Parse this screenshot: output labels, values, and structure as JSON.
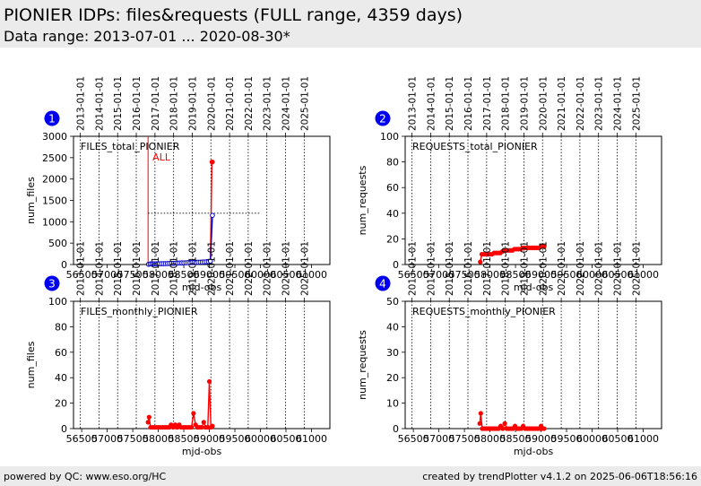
{
  "header": {
    "title": "PIONIER IDPs: files&requests (FULL range, 4359 days)",
    "subtitle": "Data range: 2013-07-01 ... 2020-08-30*"
  },
  "footer": {
    "left": "powered by QC: www.eso.org/HC",
    "right": "created by trendPlotter v4.1.2 on 2025-06-06T18:56:16"
  },
  "axes": {
    "xlabel": "mjd-obs",
    "x_ticks": [
      56500,
      57000,
      57500,
      58000,
      58500,
      59000,
      59500,
      60000,
      60500,
      61000
    ],
    "x_tick_labels": [
      "56500",
      "57000",
      "57500",
      "58000",
      "58500",
      "59000",
      "59500",
      "60000",
      "60500",
      "61000"
    ],
    "xlim": [
      56340,
      61360
    ],
    "date_ticks": [
      {
        "mjd": 56474,
        "label": "2013-01-01"
      },
      {
        "mjd": 56839,
        "label": "2014-01-01"
      },
      {
        "mjd": 57204,
        "label": "2015-01-01"
      },
      {
        "mjd": 57569,
        "label": "2016-01-01"
      },
      {
        "mjd": 57935,
        "label": "2017-01-01"
      },
      {
        "mjd": 58300,
        "label": "2018-01-01"
      },
      {
        "mjd": 58665,
        "label": "2019-01-01"
      },
      {
        "mjd": 59030,
        "label": "2020-01-01"
      },
      {
        "mjd": 59396,
        "label": "2021-01-01"
      },
      {
        "mjd": 59761,
        "label": "2022-01-01"
      },
      {
        "mjd": 60126,
        "label": "2023-01-01"
      },
      {
        "mjd": 60491,
        "label": "2024-01-01"
      },
      {
        "mjd": 60857,
        "label": "2025-01-01"
      }
    ]
  },
  "colors": {
    "badge": "#0000ee",
    "red": "#ff0000",
    "blue": "#0000cc",
    "axis": "#000000"
  },
  "chart_data": [
    {
      "id": 1,
      "badge": "1",
      "type": "line",
      "label": "FILES_total_PIONIER",
      "ylabel": "num_files",
      "ylim": [
        0,
        3000
      ],
      "yticks": [
        0,
        500,
        1000,
        1500,
        2000,
        2500,
        3000
      ],
      "marker_line": {
        "x": 57800,
        "label": "ALL"
      },
      "reference_line": {
        "x_start": 57800,
        "x_end": 60000,
        "y": 1200
      },
      "series": [
        {
          "color": "red",
          "marker": "dot",
          "x": [
            57810,
            57840,
            57870,
            57900,
            57930,
            57960,
            57990,
            58020,
            58060,
            58100,
            58140,
            58180,
            58220,
            58260,
            58300,
            58340,
            58380,
            58420,
            58460,
            58500,
            58540,
            58580,
            58620,
            58660,
            58700,
            58740,
            58780,
            58820,
            58860,
            58900,
            58940,
            58980,
            59020,
            59050,
            59060
          ],
          "y": [
            5,
            14,
            15,
            15,
            16,
            16,
            17,
            18,
            19,
            20,
            21,
            23,
            25,
            27,
            29,
            31,
            33,
            35,
            37,
            39,
            41,
            43,
            45,
            47,
            49,
            51,
            53,
            55,
            57,
            60,
            65,
            70,
            80,
            2400,
            2400
          ]
        },
        {
          "color": "blue",
          "marker": "ring",
          "x": [
            57810,
            57840,
            57870,
            57900,
            57930,
            57960,
            57990,
            58020,
            58060,
            58100,
            58140,
            58180,
            58220,
            58260,
            58300,
            58340,
            58380,
            58420,
            58460,
            58500,
            58540,
            58580,
            58620,
            58660,
            58700,
            58740,
            58780,
            58820,
            58860,
            58900,
            58940,
            58980,
            59020,
            59060
          ],
          "y": [
            5,
            14,
            15,
            15,
            16,
            16,
            17,
            18,
            19,
            20,
            21,
            23,
            25,
            27,
            29,
            31,
            33,
            35,
            37,
            39,
            41,
            43,
            45,
            47,
            49,
            51,
            53,
            55,
            57,
            60,
            65,
            70,
            80,
            1150
          ]
        }
      ]
    },
    {
      "id": 2,
      "badge": "2",
      "type": "line",
      "label": "REQUESTS_total_PIONIER",
      "ylabel": "num_requests",
      "ylim": [
        0,
        100
      ],
      "yticks": [
        0,
        20,
        40,
        60,
        80,
        100
      ],
      "series": [
        {
          "color": "red",
          "marker": "dot",
          "x": [
            57810,
            57840,
            57880,
            57920,
            57960,
            58000,
            58040,
            58080,
            58120,
            58160,
            58200,
            58240,
            58280,
            58320,
            58360,
            58400,
            58440,
            58480,
            58520,
            58560,
            58600,
            58640,
            58680,
            58720,
            58760,
            58800,
            58840,
            58880,
            58920,
            58960,
            59000,
            59040,
            59060
          ],
          "y": [
            2,
            8,
            8,
            8,
            8,
            8,
            8,
            9,
            9,
            9,
            9,
            10,
            11,
            11,
            11,
            11,
            11,
            12,
            12,
            12,
            12,
            13,
            13,
            13,
            13,
            13,
            13,
            13,
            13,
            13,
            14,
            14,
            14
          ]
        }
      ]
    },
    {
      "id": 3,
      "badge": "3",
      "type": "line",
      "label": "FILES_monthly_PIONIER",
      "ylabel": "num_files",
      "ylim": [
        0,
        100
      ],
      "yticks": [
        0,
        20,
        40,
        60,
        80,
        100
      ],
      "series": [
        {
          "color": "red",
          "marker": "dot",
          "x": [
            57800,
            57820,
            57850,
            57890,
            57930,
            57970,
            58010,
            58050,
            58090,
            58130,
            58170,
            58210,
            58250,
            58290,
            58330,
            58370,
            58410,
            58450,
            58490,
            58530,
            58570,
            58610,
            58650,
            58690,
            58730,
            58770,
            58810,
            58850,
            58890,
            58930,
            58970,
            59000,
            59030,
            59060
          ],
          "y": [
            5,
            9,
            1,
            1,
            1,
            1,
            1,
            1,
            1,
            1,
            1,
            1,
            3,
            1,
            3,
            1,
            3,
            1,
            1,
            1,
            1,
            1,
            1,
            12,
            3,
            1,
            1,
            1,
            5,
            1,
            1,
            37,
            1,
            2
          ]
        }
      ]
    },
    {
      "id": 4,
      "badge": "4",
      "type": "line",
      "label": "REQUESTS_monthly_PIONIER",
      "ylabel": "num_requests",
      "ylim": [
        0,
        50
      ],
      "yticks": [
        0,
        10,
        20,
        30,
        40,
        50
      ],
      "series": [
        {
          "color": "red",
          "marker": "dot",
          "x": [
            57800,
            57820,
            57850,
            57890,
            57930,
            57970,
            58010,
            58050,
            58090,
            58130,
            58170,
            58210,
            58250,
            58290,
            58330,
            58370,
            58410,
            58450,
            58490,
            58530,
            58570,
            58610,
            58650,
            58690,
            58730,
            58770,
            58810,
            58850,
            58890,
            58930,
            58970,
            59000,
            59030,
            59060
          ],
          "y": [
            2,
            6,
            0,
            0,
            0,
            0,
            0,
            0,
            0,
            0,
            0,
            1,
            0,
            2,
            0,
            0,
            0,
            0,
            1,
            0,
            0,
            0,
            1,
            0,
            0,
            0,
            0,
            0,
            0,
            0,
            0,
            1,
            0,
            0
          ]
        }
      ]
    }
  ]
}
